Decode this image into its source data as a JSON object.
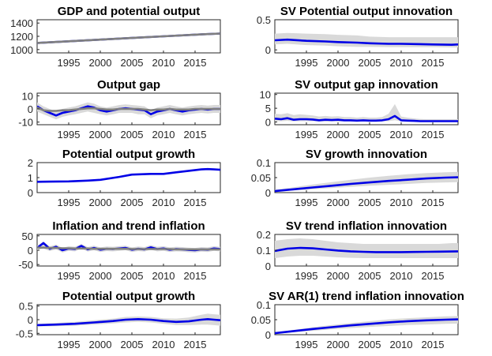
{
  "colors": {
    "series": "#0000e6",
    "band": "#d9d9d9",
    "gray_line": "#7f7f7f",
    "axis": "#262626"
  },
  "chart_data": [
    {
      "type": "line",
      "title": "GDP and potential output",
      "x": [
        1990,
        1995,
        2000,
        2005,
        2010,
        2015,
        2019
      ],
      "series": [
        {
          "values": [
            1100,
            1125,
            1150,
            1175,
            1200,
            1225,
            1242
          ],
          "color": "#0000e6"
        },
        {
          "values": [
            1100,
            1125,
            1150,
            1175,
            1200,
            1225,
            1242
          ],
          "color": "#7f7f7f"
        }
      ],
      "band": {
        "lower": [
          1097,
          1122,
          1147,
          1172,
          1197,
          1222,
          1239
        ],
        "upper": [
          1103,
          1128,
          1153,
          1178,
          1203,
          1228,
          1245
        ]
      },
      "xlim": [
        1990,
        2019
      ],
      "ylim": [
        950,
        1450
      ],
      "yticks": [
        1000,
        1200,
        1400
      ],
      "xticks": [
        1995,
        2000,
        2005,
        2010,
        2015
      ]
    },
    {
      "type": "line",
      "title": "SV Potential output innovation",
      "x": [
        1990,
        1992,
        1995,
        1998,
        2000,
        2003,
        2005,
        2008,
        2010,
        2013,
        2015,
        2018,
        2019
      ],
      "series": [
        {
          "values": [
            0.16,
            0.17,
            0.15,
            0.14,
            0.13,
            0.12,
            0.11,
            0.1,
            0.1,
            0.095,
            0.09,
            0.085,
            0.09
          ],
          "color": "#0000e6"
        }
      ],
      "band": {
        "lower": [
          0.09,
          0.1,
          0.08,
          0.07,
          0.06,
          0.05,
          0.05,
          0.045,
          0.045,
          0.045,
          0.045,
          0.04,
          0.04
        ],
        "upper": [
          0.27,
          0.28,
          0.27,
          0.26,
          0.25,
          0.24,
          0.22,
          0.21,
          0.21,
          0.21,
          0.21,
          0.21,
          0.21
        ]
      },
      "xlim": [
        1990,
        2019
      ],
      "ylim": [
        -0.05,
        0.5
      ],
      "yticks": [
        0,
        0.5
      ],
      "xticks": [
        1995,
        2000,
        2005,
        2010,
        2015
      ]
    },
    {
      "type": "line",
      "title": "Output gap",
      "x": [
        1990,
        1991,
        1992,
        1993,
        1994,
        1995,
        1996,
        1997,
        1998,
        1999,
        2000,
        2001,
        2002,
        2003,
        2004,
        2005,
        2006,
        2007,
        2008,
        2009,
        2010,
        2011,
        2012,
        2013,
        2014,
        2015,
        2016,
        2017,
        2018,
        2019
      ],
      "series": [
        {
          "values": [
            2,
            -1,
            -3,
            -5,
            -3,
            -2,
            -1,
            0.5,
            2,
            1,
            -1,
            -2,
            -1,
            0,
            0.5,
            0,
            -0.5,
            -1,
            -4,
            -2,
            -1,
            0,
            -1,
            -2,
            -1,
            -0.5,
            0,
            -0.5,
            0,
            0
          ],
          "color": "#0000e6"
        },
        {
          "values": [
            1,
            -1,
            -1.5,
            -1.5,
            -1,
            -1,
            -0.5,
            0,
            0.5,
            0.5,
            0,
            -0.5,
            -0.5,
            0,
            0,
            0,
            0,
            -0.5,
            -1,
            -0.5,
            -0.5,
            0,
            -0.5,
            -0.5,
            -0.5,
            0,
            0,
            0,
            0,
            0
          ],
          "color": "#7f7f7f"
        }
      ],
      "band": {
        "lower": [
          -2,
          -4,
          -6,
          -8,
          -6,
          -5,
          -4,
          -3,
          -2,
          -3,
          -4,
          -5,
          -4,
          -3,
          -3,
          -3,
          -4,
          -4,
          -7,
          -5,
          -4,
          -3,
          -4,
          -5,
          -4,
          -3.5,
          -3,
          -3.5,
          -3,
          -3
        ],
        "upper": [
          5,
          2,
          0,
          -2,
          0,
          1,
          2,
          3.5,
          5,
          4,
          2,
          1,
          2,
          3,
          3.5,
          3,
          2.5,
          2,
          -1,
          1,
          2,
          3,
          2,
          1,
          2,
          2.5,
          3,
          2.5,
          3,
          3
        ]
      },
      "xlim": [
        1990,
        2019
      ],
      "ylim": [
        -12,
        12
      ],
      "yticks": [
        -10,
        0,
        10
      ],
      "xticks": [
        1995,
        2000,
        2005,
        2010,
        2015
      ]
    },
    {
      "type": "line",
      "title": "SV output gap innovation",
      "x": [
        1990,
        1991,
        1992,
        1993,
        1994,
        1995,
        1996,
        1997,
        1998,
        1999,
        2000,
        2001,
        2002,
        2003,
        2004,
        2005,
        2006,
        2007,
        2008,
        2009,
        2010,
        2011,
        2012,
        2013,
        2014,
        2015,
        2016,
        2017,
        2018,
        2019
      ],
      "series": [
        {
          "values": [
            1.2,
            1.0,
            1.4,
            0.8,
            1.0,
            1.0,
            0.9,
            0.6,
            0.8,
            0.7,
            0.8,
            0.6,
            0.6,
            0.5,
            0.6,
            0.5,
            0.5,
            0.6,
            1.0,
            2.2,
            0.6,
            0.5,
            0.4,
            0.3,
            0.3,
            0.3,
            0.3,
            0.3,
            0.3,
            0.3
          ],
          "color": "#0000e6"
        }
      ],
      "band": {
        "lower": [
          0.3,
          0.3,
          0.4,
          0.2,
          0.3,
          0.3,
          0.3,
          0.2,
          0.2,
          0.2,
          0.2,
          0.2,
          0.2,
          0.1,
          0.2,
          0.1,
          0.1,
          0.2,
          0.3,
          0.6,
          0.2,
          0.1,
          0.1,
          0.1,
          0.1,
          0.1,
          0.1,
          0.1,
          0.1,
          0.1
        ],
        "upper": [
          3,
          2.8,
          3.2,
          2.5,
          2.8,
          2.6,
          2.4,
          2.0,
          2.2,
          2.0,
          2.1,
          1.8,
          1.8,
          1.6,
          1.8,
          1.6,
          1.6,
          1.8,
          3,
          6.5,
          2.0,
          1.6,
          1.3,
          1.1,
          1.0,
          1.0,
          1.0,
          1.0,
          1.0,
          1.0
        ]
      },
      "xlim": [
        1990,
        2019
      ],
      "ylim": [
        -1,
        10.5
      ],
      "yticks": [
        0,
        5,
        10
      ],
      "xticks": [
        1995,
        2000,
        2005,
        2010,
        2015
      ]
    },
    {
      "type": "line",
      "title": "Potential output growth",
      "x": [
        1990,
        1992,
        1995,
        1998,
        2000,
        2003,
        2005,
        2008,
        2010,
        2012,
        2014,
        2016,
        2017,
        2018,
        2019
      ],
      "series": [
        {
          "values": [
            0.72,
            0.73,
            0.75,
            0.8,
            0.85,
            1.05,
            1.2,
            1.25,
            1.25,
            1.35,
            1.45,
            1.55,
            1.57,
            1.55,
            1.52
          ],
          "color": "#0000e6"
        }
      ],
      "band": {
        "lower": [
          0.67,
          0.68,
          0.7,
          0.75,
          0.8,
          1.0,
          1.15,
          1.2,
          1.2,
          1.3,
          1.4,
          1.5,
          1.52,
          1.5,
          1.47
        ],
        "upper": [
          0.77,
          0.78,
          0.8,
          0.85,
          0.9,
          1.1,
          1.25,
          1.3,
          1.3,
          1.4,
          1.5,
          1.6,
          1.62,
          1.6,
          1.57
        ]
      },
      "xlim": [
        1990,
        2019
      ],
      "ylim": [
        0,
        2
      ],
      "yticks": [
        0,
        1,
        2
      ],
      "xticks": [
        1995,
        2000,
        2005,
        2010,
        2015
      ]
    },
    {
      "type": "line",
      "title": "SV growth innovation",
      "x": [
        1990,
        1993,
        1996,
        1999,
        2002,
        2005,
        2008,
        2011,
        2014,
        2017,
        2019
      ],
      "series": [
        {
          "values": [
            0.005,
            0.011,
            0.017,
            0.023,
            0.029,
            0.034,
            0.039,
            0.043,
            0.047,
            0.05,
            0.051
          ],
          "color": "#0000e6"
        }
      ],
      "band": {
        "lower": [
          0.003,
          0.007,
          0.011,
          0.015,
          0.019,
          0.023,
          0.026,
          0.029,
          0.032,
          0.034,
          0.035
        ],
        "upper": [
          0.01,
          0.018,
          0.027,
          0.035,
          0.043,
          0.05,
          0.056,
          0.061,
          0.065,
          0.068,
          0.069
        ]
      },
      "xlim": [
        1990,
        2019
      ],
      "ylim": [
        0,
        0.1
      ],
      "yticks": [
        0,
        0.05,
        0.1
      ],
      "xticks": [
        1995,
        2000,
        2005,
        2010,
        2015
      ]
    },
    {
      "type": "line",
      "title": "Inflation and trend inflation",
      "x": [
        1990,
        1991,
        1992,
        1993,
        1994,
        1995,
        1996,
        1997,
        1998,
        1999,
        2000,
        2001,
        2002,
        2003,
        2004,
        2005,
        2006,
        2007,
        2008,
        2009,
        2010,
        2011,
        2012,
        2013,
        2014,
        2015,
        2016,
        2017,
        2018,
        2019
      ],
      "series": [
        {
          "values": [
            8,
            25,
            5,
            12,
            0,
            6,
            4,
            15,
            3,
            8,
            2,
            5,
            4,
            6,
            8,
            2,
            5,
            3,
            10,
            4,
            6,
            2,
            4,
            3,
            1,
            0,
            3,
            2,
            6,
            4
          ],
          "color": "#0000e6"
        },
        {
          "values": [
            9,
            9,
            8,
            8,
            7,
            7,
            6,
            6,
            6,
            5,
            5,
            5,
            5,
            5,
            5,
            4,
            4,
            4,
            4,
            4,
            4,
            4,
            3,
            3,
            3,
            3,
            3,
            3,
            3,
            3
          ],
          "color": "#7f7f7f"
        }
      ],
      "band": {
        "lower": [
          0,
          6,
          -3,
          3,
          -8,
          -2,
          -4,
          6,
          -5,
          0,
          -6,
          -3,
          -4,
          -2,
          0,
          -6,
          -3,
          -5,
          2,
          -4,
          -2,
          -6,
          -4,
          -5,
          -7,
          -8,
          -5,
          -6,
          -2,
          -4
        ],
        "upper": [
          16,
          30,
          13,
          20,
          8,
          14,
          12,
          22,
          11,
          16,
          10,
          13,
          12,
          14,
          16,
          10,
          13,
          11,
          18,
          12,
          14,
          10,
          12,
          11,
          9,
          8,
          11,
          10,
          14,
          12
        ]
      },
      "xlim": [
        1990,
        2019
      ],
      "ylim": [
        -55,
        55
      ],
      "yticks": [
        -50,
        0,
        50
      ],
      "xticks": [
        1995,
        2000,
        2005,
        2010,
        2015
      ]
    },
    {
      "type": "line",
      "title": "SV trend inflation innovation",
      "x": [
        1990,
        1992,
        1994,
        1996,
        1998,
        2000,
        2002,
        2004,
        2006,
        2008,
        2010,
        2012,
        2014,
        2016,
        2018,
        2019
      ],
      "series": [
        {
          "values": [
            0.095,
            0.11,
            0.115,
            0.112,
            0.105,
            0.098,
            0.093,
            0.09,
            0.088,
            0.088,
            0.088,
            0.089,
            0.09,
            0.091,
            0.092,
            0.093
          ],
          "color": "#0000e6"
        }
      ],
      "band": {
        "lower": [
          0.05,
          0.06,
          0.065,
          0.065,
          0.06,
          0.055,
          0.052,
          0.05,
          0.05,
          0.05,
          0.05,
          0.05,
          0.05,
          0.05,
          0.05,
          0.05
        ],
        "upper": [
          0.16,
          0.17,
          0.175,
          0.17,
          0.16,
          0.15,
          0.145,
          0.14,
          0.14,
          0.14,
          0.14,
          0.14,
          0.14,
          0.14,
          0.145,
          0.145
        ]
      },
      "xlim": [
        1990,
        2019
      ],
      "ylim": [
        0,
        0.2
      ],
      "yticks": [
        0,
        0.1,
        0.2
      ],
      "xticks": [
        1995,
        2000,
        2005,
        2010,
        2015
      ]
    },
    {
      "type": "line",
      "title": "Potential output growth",
      "x": [
        1990,
        1993,
        1996,
        1999,
        2002,
        2004,
        2006,
        2008,
        2010,
        2012,
        2014,
        2016,
        2017,
        2018,
        2019
      ],
      "series": [
        {
          "values": [
            -0.2,
            -0.18,
            -0.15,
            -0.1,
            -0.05,
            0.0,
            0.02,
            0.0,
            -0.05,
            -0.08,
            -0.06,
            0.0,
            0.02,
            0.0,
            -0.02
          ],
          "color": "#0000e6"
        }
      ],
      "band": {
        "lower": [
          -0.25,
          -0.24,
          -0.22,
          -0.18,
          -0.14,
          -0.1,
          -0.08,
          -0.1,
          -0.15,
          -0.2,
          -0.2,
          -0.18,
          -0.18,
          -0.2,
          -0.22
        ],
        "upper": [
          -0.15,
          -0.12,
          -0.08,
          -0.02,
          0.04,
          0.1,
          0.12,
          0.1,
          0.05,
          0.04,
          0.08,
          0.18,
          0.22,
          0.2,
          0.18
        ]
      },
      "xlim": [
        1990,
        2019
      ],
      "ylim": [
        -0.55,
        0.55
      ],
      "yticks": [
        -0.5,
        0,
        0.5
      ],
      "xticks": [
        1995,
        2000,
        2005,
        2010,
        2015
      ]
    },
    {
      "type": "line",
      "title": "SV  AR(1) trend inflation innovation",
      "x": [
        1990,
        1993,
        1996,
        1999,
        2002,
        2005,
        2008,
        2011,
        2014,
        2017,
        2019
      ],
      "series": [
        {
          "values": [
            0.005,
            0.012,
            0.019,
            0.025,
            0.031,
            0.036,
            0.041,
            0.045,
            0.048,
            0.05,
            0.051
          ],
          "color": "#0000e6"
        }
      ],
      "band": {
        "lower": [
          0.003,
          0.008,
          0.013,
          0.018,
          0.022,
          0.026,
          0.029,
          0.032,
          0.034,
          0.036,
          0.037
        ],
        "upper": [
          0.008,
          0.016,
          0.025,
          0.032,
          0.039,
          0.045,
          0.051,
          0.055,
          0.058,
          0.061,
          0.062
        ]
      },
      "xlim": [
        1990,
        2019
      ],
      "ylim": [
        0,
        0.1
      ],
      "yticks": [
        0,
        0.05,
        0.1
      ],
      "xticks": [
        1995,
        2000,
        2005,
        2010,
        2015
      ]
    }
  ]
}
